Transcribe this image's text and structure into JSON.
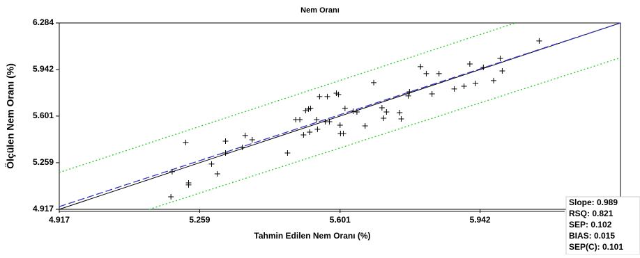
{
  "chart_data": {
    "type": "scatter",
    "title": "Nem Oranı",
    "x_label": "Tahmin Edilen Nem Oranı (%)",
    "y_label": "Ölçülen Nem Oranı (%)",
    "xlim": [
      4.917,
      6.284
    ],
    "ylim": [
      4.917,
      6.284
    ],
    "xticks": [
      4.917,
      5.259,
      5.601,
      5.942
    ],
    "yticks": [
      4.917,
      5.259,
      5.601,
      5.942,
      6.284
    ],
    "color": "#000000",
    "x": [
      5.189,
      5.192,
      5.225,
      5.232,
      5.232,
      5.288,
      5.302,
      5.322,
      5.322,
      5.363,
      5.37,
      5.387,
      5.473,
      5.493,
      5.503,
      5.512,
      5.517,
      5.524,
      5.527,
      5.529,
      5.544,
      5.546,
      5.551,
      5.565,
      5.57,
      5.575,
      5.592,
      5.597,
      5.601,
      5.602,
      5.609,
      5.613,
      5.633,
      5.642,
      5.662,
      5.683,
      5.703,
      5.707,
      5.714,
      5.746,
      5.75,
      5.767,
      5.77,
      5.797,
      5.811,
      5.825,
      5.842,
      5.879,
      5.903,
      5.917,
      5.931,
      5.95,
      5.975,
      5.991,
      5.996,
      6.086
    ],
    "values": [
      5.009,
      5.193,
      5.407,
      5.111,
      5.096,
      5.249,
      5.177,
      5.417,
      5.33,
      5.371,
      5.458,
      5.427,
      5.33,
      5.575,
      5.575,
      5.463,
      5.641,
      5.652,
      5.483,
      5.657,
      5.575,
      5.504,
      5.744,
      5.56,
      5.744,
      5.56,
      5.769,
      5.759,
      5.534,
      5.473,
      5.473,
      5.657,
      5.636,
      5.631,
      5.529,
      5.846,
      5.662,
      5.585,
      5.631,
      5.626,
      5.58,
      5.749,
      5.779,
      5.963,
      5.912,
      5.764,
      5.912,
      5.8,
      5.82,
      5.983,
      5.84,
      5.958,
      5.861,
      6.024,
      5.932,
      6.152
    ],
    "lines": [
      {
        "x": [
          4.917,
          6.284
        ],
        "y": [
          4.917,
          6.284
        ],
        "color": "#000000",
        "style": "solid"
      },
      {
        "x": [
          4.917,
          6.284
        ],
        "y": [
          4.937,
          6.284
        ],
        "color": "#3333cc",
        "style": "dashed"
      },
      {
        "x": [
          4.917,
          6.028
        ],
        "y": [
          5.187,
          6.284
        ],
        "color": "#22cc22",
        "style": "dotted"
      },
      {
        "x": [
          5.136,
          6.284
        ],
        "y": [
          4.917,
          6.029
        ],
        "color": "#22cc22",
        "style": "dotted"
      }
    ],
    "stats": [
      "Slope: 0.989",
      "RSQ: 0.821",
      "SEP: 0.102",
      "BIAS: 0.015",
      "SEP(C): 0.101"
    ]
  }
}
